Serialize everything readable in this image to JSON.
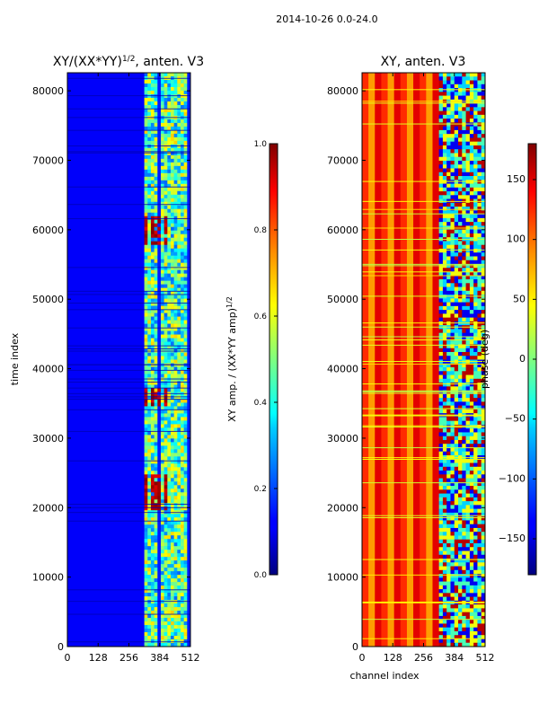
{
  "figure": {
    "suptitle": "2014-10-26 0.0-24.0"
  },
  "chart_data": [
    {
      "type": "heatmap",
      "panel": "left",
      "title_main": "XY/(XX*YY)",
      "title_exp": "1/2",
      "title_tail": ", anten. V3",
      "xlabel": "",
      "ylabel": "time index",
      "xlim": [
        0,
        512
      ],
      "ylim": [
        0,
        82600
      ],
      "xticks": [
        0,
        128,
        256,
        384,
        512
      ],
      "yticks": [
        0,
        10000,
        20000,
        30000,
        40000,
        50000,
        60000,
        70000,
        80000
      ],
      "colormap": "jet",
      "colorbar": {
        "label_main": "XY amp. / (XX*YY amp)",
        "label_exp": "1/2",
        "range": [
          0.0,
          1.0
        ],
        "ticks": [
          0.0,
          0.2,
          0.4,
          0.6,
          0.8,
          1.0
        ],
        "tick_labels": [
          "0.0",
          "0.2",
          "0.4",
          "0.6",
          "0.8",
          "1.0"
        ]
      },
      "base_value": 0.12,
      "bright_channel_range": [
        320,
        512
      ],
      "bright_channel_value": 0.45,
      "hotspot_bands": [
        [
          20000,
          25000
        ],
        [
          35000,
          37500
        ],
        [
          58000,
          62000
        ]
      ],
      "hotspot_value": 0.9,
      "hotspot_channels": [
        [
          318,
          340
        ],
        [
          342,
          364
        ],
        [
          368,
          392
        ],
        [
          398,
          418
        ]
      ]
    },
    {
      "type": "heatmap",
      "panel": "right",
      "title": "XY, anten. V3",
      "xlabel": "channel index",
      "ylabel": "",
      "xlim": [
        0,
        512
      ],
      "ylim": [
        0,
        82600
      ],
      "xticks": [
        0,
        128,
        256,
        384,
        512
      ],
      "yticks": [
        0,
        10000,
        20000,
        30000,
        40000,
        50000,
        60000,
        70000,
        80000
      ],
      "colormap": "jet",
      "colorbar": {
        "label": "phase (deg)",
        "range": [
          -180,
          180
        ],
        "ticks": [
          -150,
          -100,
          -50,
          0,
          50,
          100,
          150
        ],
        "tick_labels": [
          "−150",
          "−100",
          "−50",
          "0",
          "50",
          "100",
          "150"
        ]
      },
      "base_phase": 120,
      "noisy_channel_range": [
        320,
        512
      ],
      "noisy_phase_values": [
        -140,
        -60,
        -20,
        40,
        160
      ]
    }
  ]
}
